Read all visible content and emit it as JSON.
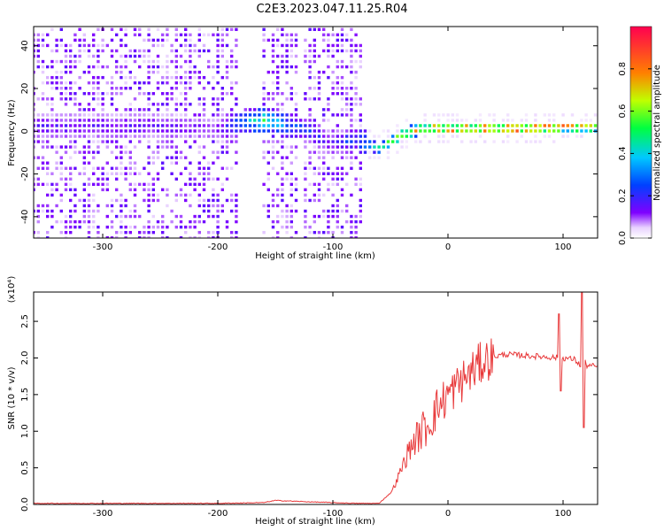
{
  "title": "C2E3.2023.047.11.25.R04",
  "chart_data": [
    {
      "type": "heatmap",
      "xlabel": "Height of straight line (km)",
      "ylabel": "Frequency (Hz)",
      "xlim": [
        -360,
        130
      ],
      "ylim": [
        -50,
        49
      ],
      "xticks": [
        -300,
        -200,
        -100,
        0,
        100
      ],
      "yticks": [
        -40,
        -20,
        0,
        20,
        40
      ],
      "colorbar": {
        "label": "Normalized spectral amplitude",
        "range": [
          0.0,
          1.0
        ],
        "ticks": [
          0.0,
          0.2,
          0.4,
          0.6,
          0.8
        ],
        "colormap": [
          "#ffffff",
          "#7f00ff",
          "#0040ff",
          "#00e0e0",
          "#00ff40",
          "#c0ff00",
          "#ff8000",
          "#ff0040"
        ]
      },
      "ridge": {
        "x": [
          -360,
          -300,
          -250,
          -200,
          -180,
          -160,
          -140,
          -120,
          -100,
          -80,
          -70,
          -60,
          -50,
          -40,
          -30,
          -20,
          -10,
          0,
          20,
          40,
          60,
          80,
          100,
          120,
          130
        ],
        "y": [
          2,
          2,
          2,
          1,
          4,
          5,
          3,
          0,
          -6,
          -4,
          -6,
          -8,
          -5,
          -2,
          0,
          1,
          1,
          1,
          1,
          1,
          1,
          1.5,
          2,
          2,
          2
        ],
        "amplitude": [
          0.15,
          0.15,
          0.15,
          0.12,
          0.3,
          0.45,
          0.3,
          0.2,
          0.15,
          0.25,
          0.35,
          0.45,
          0.55,
          0.65,
          0.7,
          0.8,
          0.85,
          0.85,
          0.9,
          0.9,
          0.9,
          0.85,
          0.8,
          0.75,
          0.6
        ]
      }
    },
    {
      "type": "line",
      "xlabel": "Height of straight line (km)",
      "ylabel": "SNR (10 * v/v)",
      "yscale_label": "(x10⁴)",
      "xlim": [
        -360,
        130
      ],
      "ylim": [
        0.0,
        2.9
      ],
      "xticks": [
        -300,
        -200,
        -100,
        0,
        100
      ],
      "yticks": [
        0.0,
        0.5,
        1.0,
        1.5,
        2.0,
        2.5
      ],
      "line_color": "#e8393a",
      "series": [
        {
          "x": [
            -360,
            -300,
            -250,
            -200,
            -160,
            -150,
            -120,
            -100,
            -80,
            -60,
            -50,
            -45,
            -40,
            -35,
            -30,
            -25,
            -20,
            -15,
            -10,
            -5,
            0,
            10,
            20,
            30,
            40,
            50,
            60,
            70,
            80,
            90,
            100,
            110,
            115,
            118,
            120,
            130
          ],
          "values": [
            0.01,
            0.01,
            0.01,
            0.01,
            0.02,
            0.05,
            0.03,
            0.02,
            0.01,
            0.01,
            0.15,
            0.3,
            0.5,
            0.7,
            0.85,
            0.95,
            1.05,
            1.15,
            1.3,
            1.4,
            1.5,
            1.65,
            1.8,
            1.95,
            2.02,
            2.05,
            2.04,
            2.03,
            2.02,
            2.01,
            2.0,
            1.98,
            1.9,
            2.0,
            1.9,
            1.88
          ]
        }
      ]
    }
  ]
}
